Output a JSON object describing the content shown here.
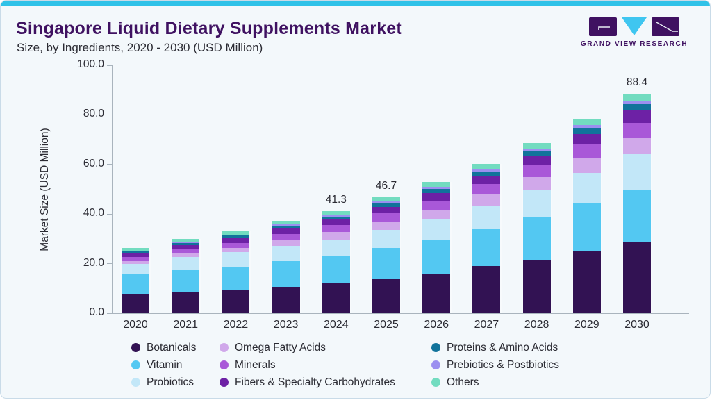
{
  "header": {
    "title": "Singapore Liquid Dietary Supplements Market",
    "subtitle": "Size, by Ingredients, 2020 - 2030 (USD Million)",
    "logo_text": "GRAND VIEW RESEARCH"
  },
  "colors": {
    "accent_strip": "#2fc2e8",
    "title_purple": "#3f1161",
    "card_background": "#f3f8fb",
    "axis_gray": "#a9b4bd",
    "text_dark": "#2b2b33",
    "logo_dark": "#3f1161",
    "logo_cyan": "#3fc6f0"
  },
  "chart_data": {
    "type": "bar",
    "stacked": true,
    "title": "Singapore Liquid Dietary Supplements Market Size, by Ingredients, 2020 - 2030 (USD Million)",
    "xlabel": "",
    "ylabel": "Market Size (USD Million)",
    "ylim": [
      0,
      100
    ],
    "yticks": [
      "0.0",
      "20.0",
      "40.0",
      "60.0",
      "80.0",
      "100.0"
    ],
    "grid": false,
    "legend_position": "bottom",
    "categories": [
      "2020",
      "2021",
      "2022",
      "2023",
      "2024",
      "2025",
      "2026",
      "2027",
      "2028",
      "2029",
      "2030"
    ],
    "bar_labels": [
      "",
      "",
      "",
      "",
      "41.3",
      "46.7",
      "",
      "",
      "",
      "",
      "88.4"
    ],
    "series": [
      {
        "name": "Botanicals",
        "color": "#321253",
        "values": [
          7.6,
          8.7,
          9.5,
          10.7,
          12.0,
          13.8,
          15.9,
          19.0,
          21.7,
          25.1,
          28.7
        ]
      },
      {
        "name": "Vitamin",
        "color": "#53c8f2",
        "values": [
          8.0,
          8.6,
          9.4,
          10.3,
          11.3,
          12.5,
          13.5,
          15.0,
          17.1,
          19.2,
          21.1
        ]
      },
      {
        "name": "Probiotics",
        "color": "#c2e7f8",
        "values": [
          4.3,
          5.4,
          5.7,
          6.2,
          6.5,
          7.4,
          8.7,
          9.5,
          11.0,
          12.4,
          14.4
        ]
      },
      {
        "name": "Omega Fatty Acids",
        "color": "#d0a8ea",
        "values": [
          1.1,
          1.4,
          1.7,
          2.1,
          2.9,
          3.4,
          3.6,
          4.4,
          5.2,
          6.0,
          6.7
        ]
      },
      {
        "name": "Minerals",
        "color": "#a958d8",
        "values": [
          1.7,
          1.8,
          2.1,
          2.6,
          2.8,
          3.2,
          3.8,
          4.1,
          4.6,
          5.3,
          5.9
        ]
      },
      {
        "name": "Fibers & Specialty Carbohydrates",
        "color": "#6d21a5",
        "values": [
          1.4,
          1.6,
          1.9,
          2.2,
          2.2,
          2.6,
          3.0,
          3.3,
          3.8,
          4.3,
          4.9
        ]
      },
      {
        "name": "Proteins & Amino Acids",
        "color": "#11739b",
        "values": [
          0.8,
          0.9,
          1.0,
          1.2,
          1.3,
          1.5,
          1.7,
          1.9,
          2.1,
          2.4,
          2.7
        ]
      },
      {
        "name": "Prebiotics & Postbiotics",
        "color": "#9b8ff0",
        "values": [
          0.4,
          0.5,
          0.5,
          0.6,
          0.6,
          0.7,
          0.8,
          0.9,
          1.0,
          1.1,
          1.3
        ]
      },
      {
        "name": "Others",
        "color": "#72dcc0",
        "values": [
          1.1,
          1.2,
          1.3,
          1.5,
          1.6,
          1.6,
          1.9,
          2.1,
          2.2,
          2.5,
          2.7
        ]
      }
    ]
  }
}
